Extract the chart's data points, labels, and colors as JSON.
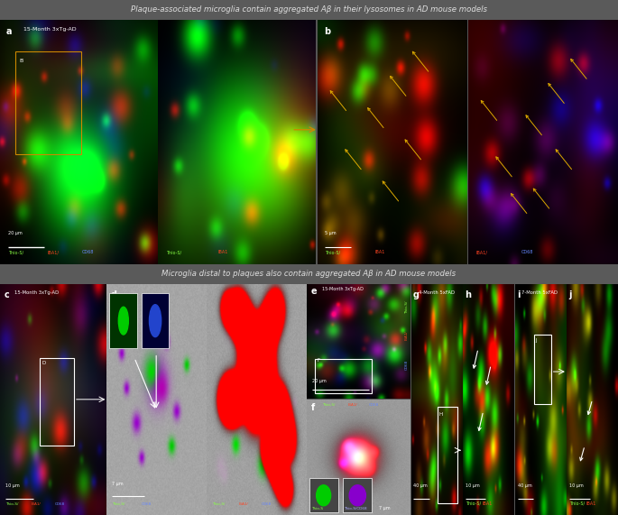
{
  "title1": "Plaque-associated microglia contain aggregated Aβ in their lysosomes in AD mouse models",
  "title2": "Microglia distal to plaques also contain aggregated Aβ in AD mouse models",
  "header_bg": "#5a5a5a",
  "header_text_color": "#dddddd",
  "fig_width": 6.85,
  "fig_height": 5.71
}
